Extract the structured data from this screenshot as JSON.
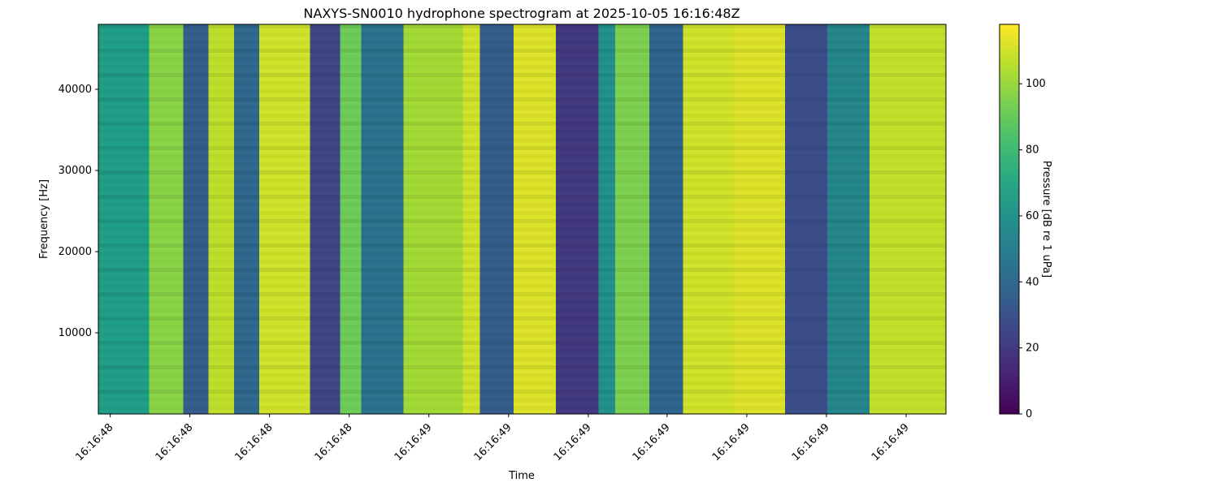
{
  "chart_data": {
    "type": "heatmap",
    "title": "NAXYS-SN0010 hydrophone spectrogram at 2025-10-05 16:16:48Z",
    "xlabel": "Time",
    "ylabel": "Frequency [Hz]",
    "colorbar_label": "Pressure [dB re 1 uPa]",
    "colormap": "viridis",
    "colorbar_range": [
      0,
      118
    ],
    "colorbar_ticks": [
      0,
      20,
      40,
      60,
      80,
      100
    ],
    "ylim": [
      0,
      48000
    ],
    "y_ticks": [
      10000,
      20000,
      30000,
      40000
    ],
    "x_tick_labels": [
      "16:16:48",
      "16:16:48",
      "16:16:48",
      "16:16:48",
      "16:16:49",
      "16:16:49",
      "16:16:49",
      "16:16:49",
      "16:16:49",
      "16:16:49",
      "16:16:49"
    ],
    "x_tick_fractions": [
      0.014,
      0.108,
      0.202,
      0.296,
      0.39,
      0.484,
      0.578,
      0.671,
      0.765,
      0.859,
      0.953
    ],
    "time_band_levels_db": [
      {
        "start": 0.0,
        "end": 0.06,
        "db": 66
      },
      {
        "start": 0.06,
        "end": 0.1,
        "db": 97
      },
      {
        "start": 0.1,
        "end": 0.13,
        "db": 35
      },
      {
        "start": 0.13,
        "end": 0.16,
        "db": 107
      },
      {
        "start": 0.16,
        "end": 0.19,
        "db": 40
      },
      {
        "start": 0.19,
        "end": 0.25,
        "db": 110
      },
      {
        "start": 0.25,
        "end": 0.285,
        "db": 25
      },
      {
        "start": 0.285,
        "end": 0.31,
        "db": 92
      },
      {
        "start": 0.31,
        "end": 0.36,
        "db": 45
      },
      {
        "start": 0.36,
        "end": 0.43,
        "db": 102
      },
      {
        "start": 0.43,
        "end": 0.45,
        "db": 110
      },
      {
        "start": 0.45,
        "end": 0.49,
        "db": 35
      },
      {
        "start": 0.49,
        "end": 0.54,
        "db": 112
      },
      {
        "start": 0.54,
        "end": 0.59,
        "db": 20
      },
      {
        "start": 0.59,
        "end": 0.61,
        "db": 60
      },
      {
        "start": 0.61,
        "end": 0.65,
        "db": 95
      },
      {
        "start": 0.65,
        "end": 0.69,
        "db": 38
      },
      {
        "start": 0.69,
        "end": 0.75,
        "db": 110
      },
      {
        "start": 0.75,
        "end": 0.81,
        "db": 112
      },
      {
        "start": 0.81,
        "end": 0.86,
        "db": 28
      },
      {
        "start": 0.86,
        "end": 0.91,
        "db": 55
      },
      {
        "start": 0.91,
        "end": 1.0,
        "db": 108
      }
    ]
  }
}
